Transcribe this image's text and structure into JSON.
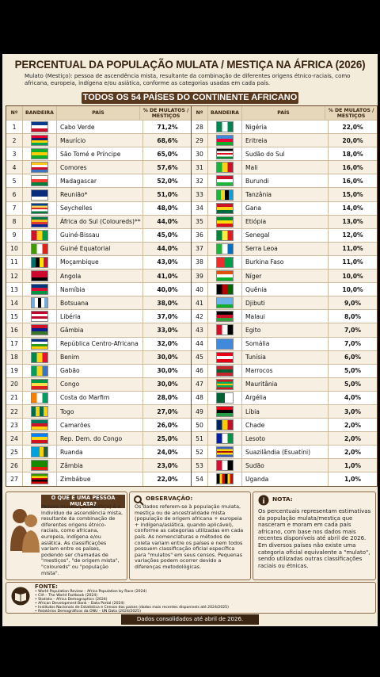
{
  "header": {
    "title": "PERCENTUAL DA POPULAÇÃO MULATA / MESTIÇA NA ÁFRICA (2026)",
    "subtitle": "Mulato (Mestiço): pessoa de ascendência mista, resultante da combinação de diferentes origens étnico-raciais, como africana, europeia, indígena e/ou asiática, conforme as categorias usadas em cada país.",
    "banner": "TODOS OS 54 PAÍSES DO CONTINENTE AFRICANO"
  },
  "table": {
    "columns": [
      "Nº",
      "BANDEIRA",
      "PAÍS",
      "% DE MULATOS / MESTIÇOS"
    ],
    "rows": [
      [
        1,
        "Cabo Verde",
        "71,2%"
      ],
      [
        2,
        "Maurício",
        "68,6%"
      ],
      [
        3,
        "São Tomé e Príncipe",
        "65,0%"
      ],
      [
        4,
        "Comores",
        "57,6%"
      ],
      [
        5,
        "Madagascar",
        "52,0%"
      ],
      [
        6,
        "Reunião*",
        "51,0%"
      ],
      [
        7,
        "Seychelles",
        "48,0%"
      ],
      [
        8,
        "África do Sul (Coloureds)**",
        "44,0%"
      ],
      [
        9,
        "Guiné-Bissau",
        "45,0%"
      ],
      [
        10,
        "Guiné Equatorial",
        "44,0%"
      ],
      [
        11,
        "Moçambique",
        "43,0%"
      ],
      [
        12,
        "Angola",
        "41,0%"
      ],
      [
        13,
        "Namíbia",
        "40,0%"
      ],
      [
        14,
        "Botsuana",
        "38,0%"
      ],
      [
        15,
        "Libéria",
        "37,0%"
      ],
      [
        16,
        "Gâmbia",
        "33,0%"
      ],
      [
        17,
        "República Centro-Africana",
        "32,0%"
      ],
      [
        18,
        "Benim",
        "30,0%"
      ],
      [
        19,
        "Gabão",
        "30,0%"
      ],
      [
        20,
        "Congo",
        "30,0%"
      ],
      [
        21,
        "Costa do Marfim",
        "28,0%"
      ],
      [
        22,
        "Togo",
        "27,0%"
      ],
      [
        23,
        "Camarões",
        "26,0%"
      ],
      [
        24,
        "Rep. Dem. do Congo",
        "25,0%"
      ],
      [
        25,
        "Ruanda",
        "24,0%"
      ],
      [
        26,
        "Zâmbia",
        "23,0%"
      ],
      [
        27,
        "Zimbábue",
        "22,0%"
      ],
      [
        28,
        "Nigéria",
        "22,0%"
      ],
      [
        29,
        "Eritreia",
        "20,0%"
      ],
      [
        30,
        "Sudão do Sul",
        "18,0%"
      ],
      [
        31,
        "Mali",
        "16,0%"
      ],
      [
        32,
        "Burundi",
        "16,0%"
      ],
      [
        33,
        "Tanzânia",
        "15,0%"
      ],
      [
        34,
        "Gana",
        "14,0%"
      ],
      [
        35,
        "Etiópia",
        "13,0%"
      ],
      [
        36,
        "Senegal",
        "12,0%"
      ],
      [
        37,
        "Serra Leoa",
        "11,0%"
      ],
      [
        38,
        "Burkina Faso",
        "11,0%"
      ],
      [
        39,
        "Níger",
        "10,0%"
      ],
      [
        40,
        "Quênia",
        "10,0%"
      ],
      [
        41,
        "Djibuti",
        "9,0%"
      ],
      [
        42,
        "Malaui",
        "8,0%"
      ],
      [
        43,
        "Egito",
        "7,0%"
      ],
      [
        44,
        "Somália",
        "7,0%"
      ],
      [
        45,
        "Tunísia",
        "6,0%"
      ],
      [
        46,
        "Marrocos",
        "5,0%"
      ],
      [
        47,
        "Mauritânia",
        "5,0%"
      ],
      [
        48,
        "Argélia",
        "4,0%"
      ],
      [
        49,
        "Líbia",
        "3,0%"
      ],
      [
        50,
        "Chade",
        "2,0%"
      ],
      [
        51,
        "Lesoto",
        "2,0%"
      ],
      [
        52,
        "Suazilândia (Esuatíni)",
        "2,0%"
      ],
      [
        53,
        "Sudão",
        "1,0%"
      ],
      [
        54,
        "Uganda",
        "1,0%"
      ]
    ]
  },
  "boxes": [
    {
      "title": "O QUE É UMA PESSOA MULATA?",
      "text": "Pessoa mulata (ou mestiça) é o indivíduo de ascendência mista, resultante da combinação de diferentes origens étnico-raciais, como africana, europeia, indígena e/ou asiática. As classificações variam entre os países, podendo ser chamadas de \"mestiços\", \"de origem mista\", \"coloureds\" ou \"população mista\"."
    },
    {
      "title": "OBSERVAÇÃO:",
      "text": "Os dados referem-se à população mulata, mestiça ou de ancestralidade mista (população de origem africana + europeia + indígena/asiática, quando aplicável), conforme as categorias utilizadas em cada país. As nomenclaturas e métodos de coleta variam entre os países e nem todos possuem classificação oficial específica para \"mulatos\" em seus censos. Pequenas variações podem ocorrer devido a diferenças metodológicas."
    },
    {
      "title": "NOTA:",
      "text": "Os percentuais representam estimativas da população mulata/mestiça que nasceram e moram em cada país africano, com base nos dados mais recentes disponíveis até abril de 2026. Em diversos países não existe uma categoria oficial equivalente a \"mulato\", sendo utilizadas outras classificações raciais ou étnicas."
    }
  ],
  "sources": {
    "title": "FONTE:",
    "items": [
      "World Population Review – Africa Population by Race (2024)",
      "CIA – The World Factbook (2024)",
      "Statista – Africa Demographics (2024)",
      "African Development Bank – Data Portal (2024)",
      "Institutos Nacionais de Estatística e Censos dos países (dados mais recentes disponíveis até 2024/2025)",
      "Relatórios Demográficos da ONU – UN Data (2024/2025)"
    ]
  },
  "footer": "Dados consolidados até abril de 2026."
}
